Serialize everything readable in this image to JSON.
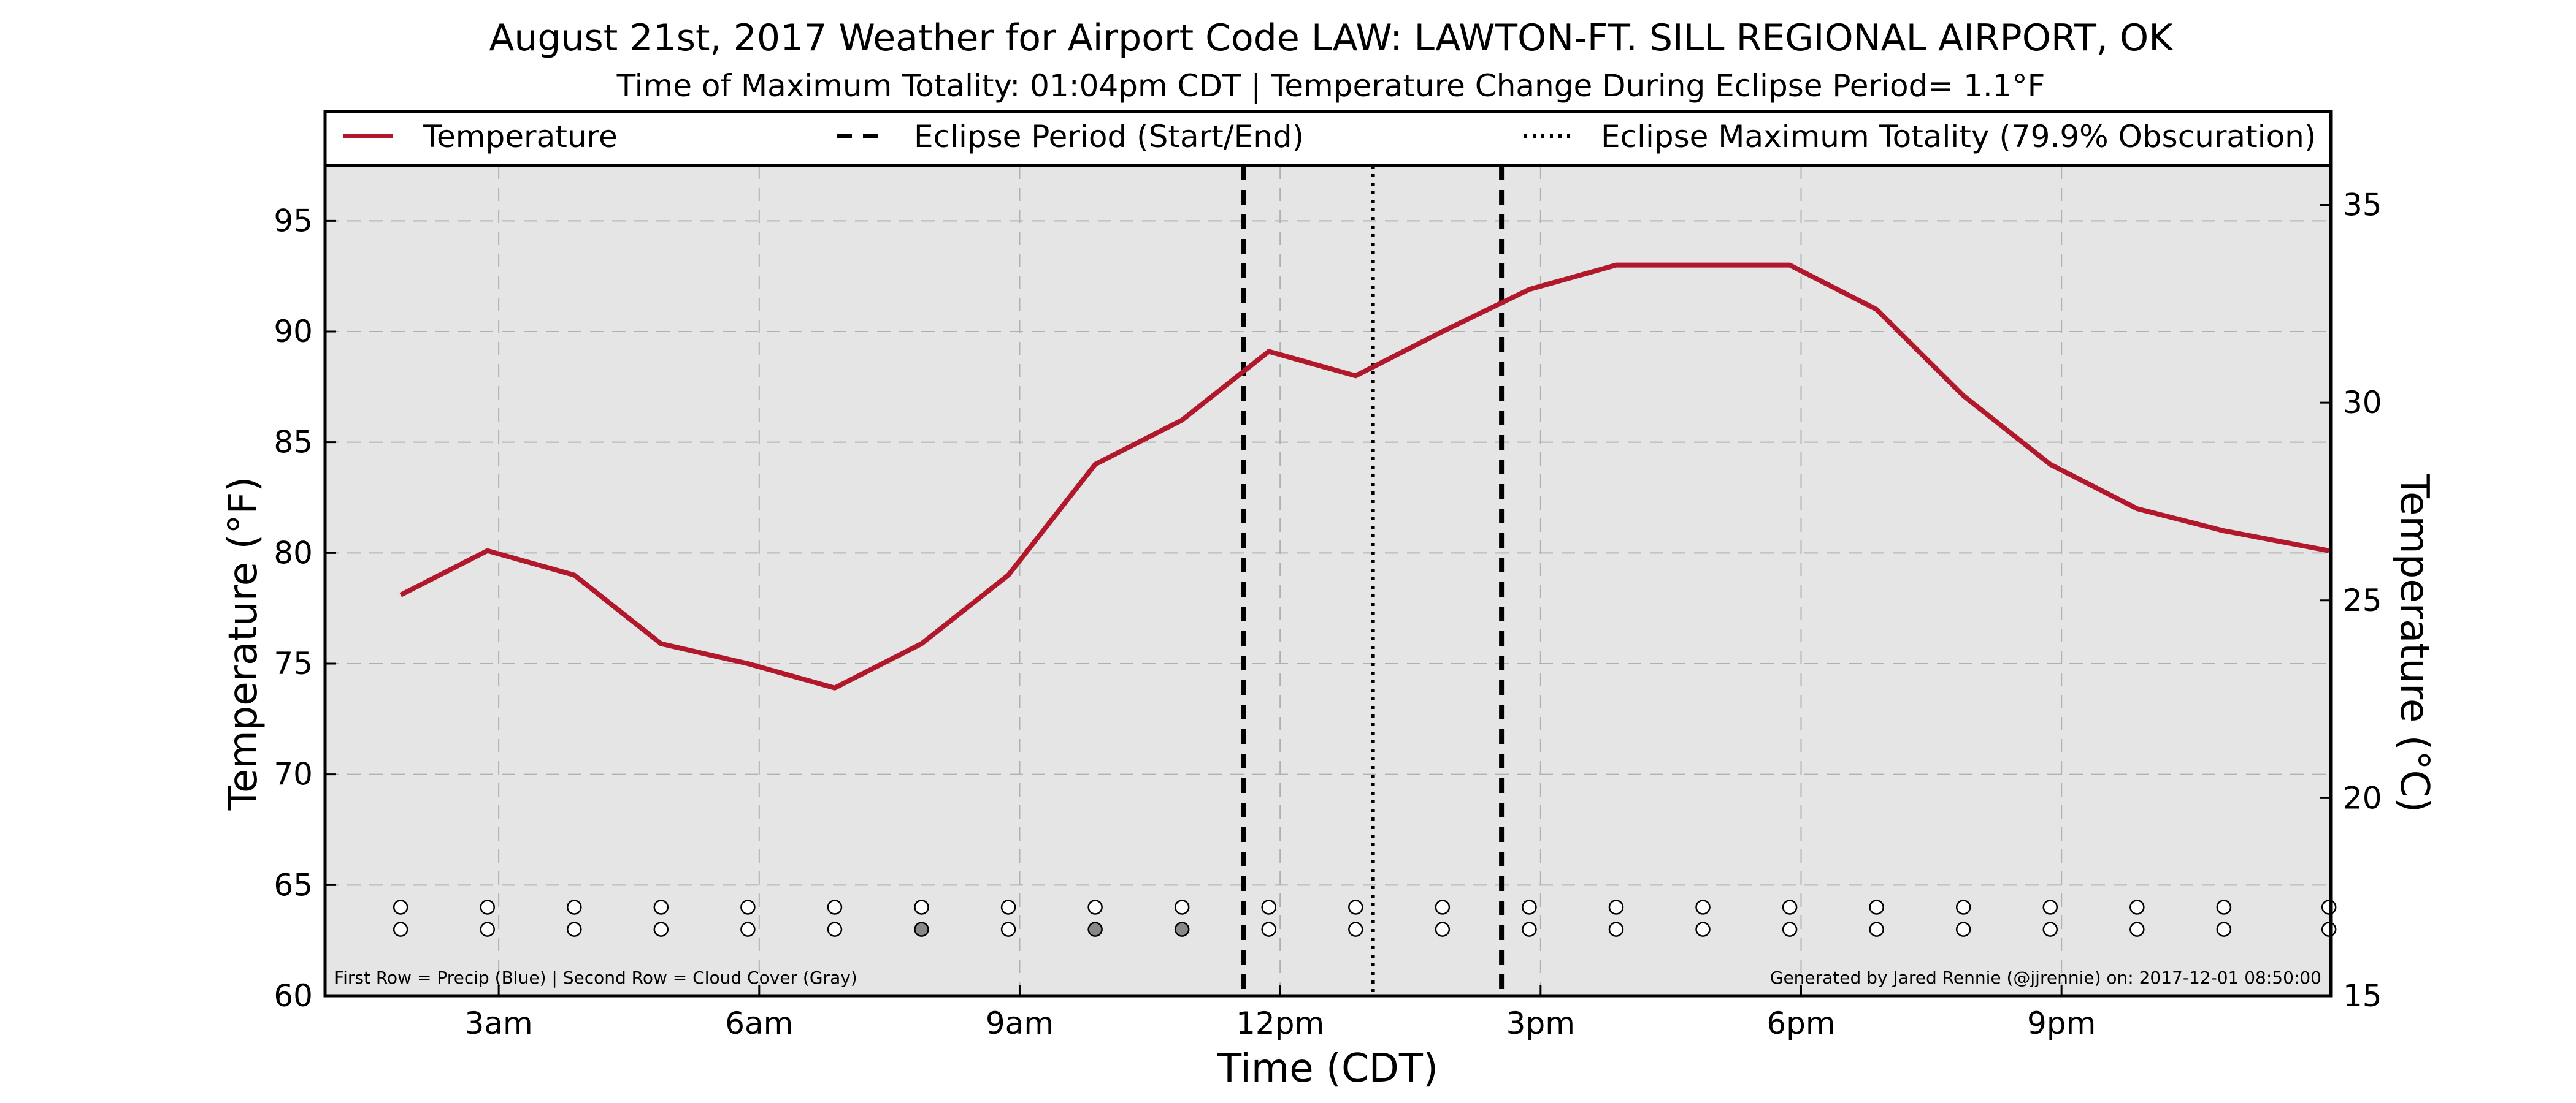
{
  "chart_data": {
    "type": "line",
    "title": "August 21st, 2017 Weather for Airport Code LAW: LAWTON-FT. SILL REGIONAL AIRPORT, OK",
    "subtitle": "Time of Maximum Totality: 01:04pm CDT | Temperature Change During Eclipse Period= 1.1°F",
    "xlabel": "Time (CDT)",
    "ylabel_left": "Temperature (°F)",
    "ylabel_right": "Temperature (°C)",
    "xlim": [
      1.0,
      24.1
    ],
    "ylim_left": [
      60,
      97.5
    ],
    "ylim_right": [
      15,
      36
    ],
    "x_ticks": [
      {
        "x": 3,
        "label": "3am"
      },
      {
        "x": 6,
        "label": "6am"
      },
      {
        "x": 9,
        "label": "9am"
      },
      {
        "x": 12,
        "label": "12pm"
      },
      {
        "x": 15,
        "label": "3pm"
      },
      {
        "x": 18,
        "label": "6pm"
      },
      {
        "x": 21,
        "label": "9pm"
      }
    ],
    "y_ticks_left": [
      60,
      65,
      70,
      75,
      80,
      85,
      90,
      95
    ],
    "y_ticks_right": [
      15,
      20,
      25,
      30,
      35
    ],
    "grid": true,
    "legend": {
      "placement": "top",
      "entries": [
        {
          "label": "Temperature",
          "style": "solid",
          "color": "#b2182b"
        },
        {
          "label": "Eclipse Period (Start/End)",
          "style": "dashed",
          "color": "#000000"
        },
        {
          "label": "Eclipse Maximum Totality (79.9% Obscuration)",
          "style": "dotted",
          "color": "#000000"
        }
      ]
    },
    "series": [
      {
        "name": "Temperature",
        "color": "#b2182b",
        "x": [
          1.87,
          2.87,
          3.87,
          4.87,
          5.87,
          6.87,
          7.87,
          8.87,
          9.87,
          10.87,
          11.87,
          12.87,
          13.87,
          14.87,
          15.87,
          16.87,
          17.87,
          18.87,
          19.87,
          20.87,
          21.87,
          22.87,
          24.08
        ],
        "y": [
          78.1,
          80.1,
          79.0,
          75.9,
          75.0,
          73.9,
          75.9,
          79.0,
          84.0,
          86.0,
          89.1,
          88.0,
          90.0,
          91.9,
          93.0,
          93.0,
          93.0,
          91.0,
          87.1,
          84.0,
          82.0,
          81.0,
          80.1
        ]
      }
    ],
    "eclipse_start_x": 11.58,
    "eclipse_end_x": 14.55,
    "max_totality_x": 13.07,
    "indicator_row_x": [
      1.87,
      2.87,
      3.87,
      4.87,
      5.87,
      6.87,
      7.87,
      8.87,
      9.87,
      10.87,
      11.87,
      12.87,
      13.87,
      14.87,
      15.87,
      16.87,
      17.87,
      18.87,
      19.87,
      20.87,
      21.87,
      22.87,
      24.08
    ],
    "precip_row_y": 64.0,
    "cloud_row_y": 63.0,
    "precip_row_missing": [],
    "cloud_cover_gray_x": [
      7.87,
      9.87,
      10.87
    ],
    "colors": {
      "plot_background": "#e5e5e5",
      "grid": "#b0b0b0",
      "temperature": "#b2182b",
      "cloud_gray": "#888888"
    },
    "footnote_left": "First Row = Precip (Blue) | Second Row = Cloud Cover (Gray)",
    "footnote_right": "Generated by Jared Rennie (@jjrennie) on: 2017-12-01 08:50:00"
  }
}
